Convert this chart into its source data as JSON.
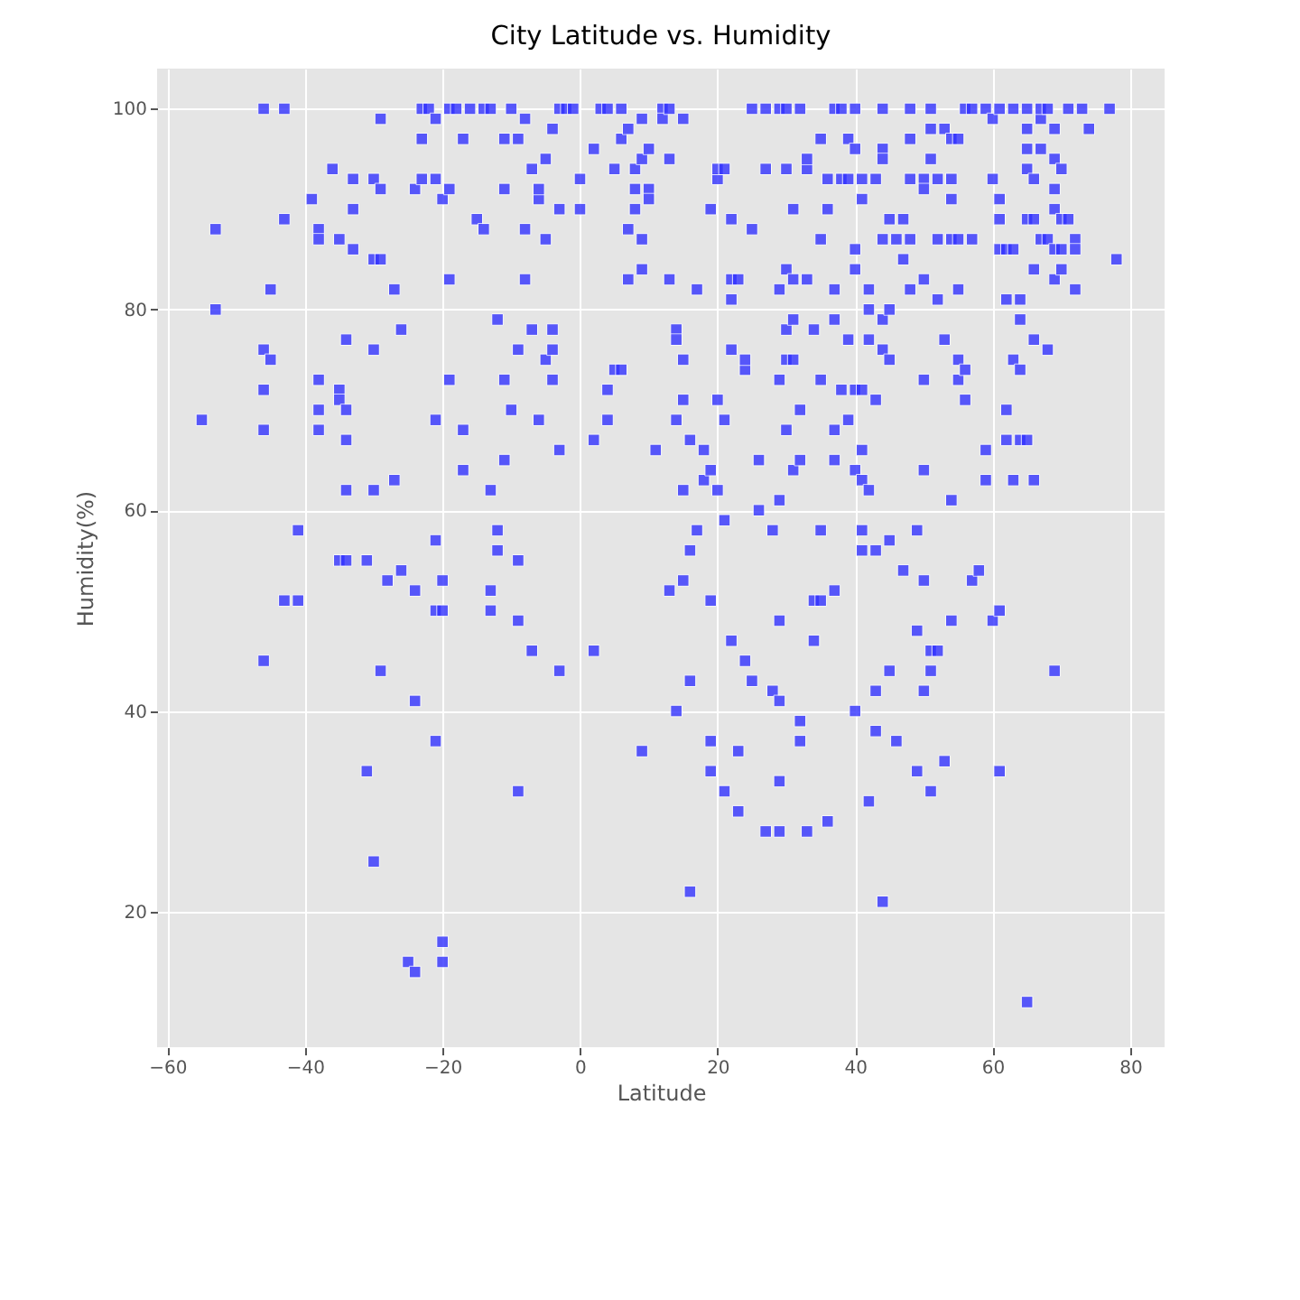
{
  "chart_data": {
    "type": "scatter",
    "title": "City Latitude vs. Humidity",
    "xlabel": "Latitude",
    "ylabel": "Humidity(%)",
    "color": "#3333ff",
    "marker": "square",
    "grid": true,
    "xlim": [
      -61.5,
      85
    ],
    "ylim": [
      6.5,
      104
    ],
    "xticks": [
      -60,
      -40,
      -20,
      0,
      20,
      40,
      60,
      80
    ],
    "yticks": [
      20,
      40,
      60,
      80,
      100
    ],
    "x": [
      -55,
      -53,
      -53,
      -46,
      -46,
      -46,
      -46,
      -46,
      -45,
      -45,
      -43,
      -43,
      -43,
      -41,
      -41,
      -39,
      -38,
      -38,
      -38,
      -38,
      -38,
      -36,
      -35,
      -35,
      -34,
      -35,
      -34,
      -34,
      -35,
      -34,
      -33,
      -33,
      -33,
      -34,
      -31,
      -31,
      -30,
      -30,
      -29,
      -30,
      -30,
      -30,
      -29,
      -29,
      -29,
      -27,
      -27,
      -28,
      -26,
      -26,
      -25,
      -24,
      -24,
      -24,
      -24,
      -23,
      -23,
      -23,
      -22,
      -21,
      -21,
      -21,
      -21,
      -21,
      -21,
      -20,
      -20,
      -20,
      -20,
      -20,
      -19,
      -19,
      -19,
      -19,
      -18,
      -17,
      -17,
      -17,
      -16,
      -15,
      -14,
      -14,
      -13,
      -13,
      -13,
      -13,
      -12,
      -12,
      -12,
      -11,
      -11,
      -11,
      -11,
      -10,
      -10,
      -9,
      -9,
      -9,
      -9,
      -9,
      -8,
      -8,
      -8,
      -7,
      -7,
      -7,
      -6,
      -6,
      -6,
      -5,
      -5,
      -5,
      -4,
      -4,
      -4,
      -4,
      -3,
      -3,
      -3,
      -3,
      -2,
      -1,
      0,
      0,
      2,
      2,
      2,
      3,
      4,
      4,
      4,
      5,
      5,
      6,
      6,
      6,
      7,
      7,
      7,
      8,
      8,
      8,
      9,
      9,
      9,
      9,
      9,
      10,
      10,
      10,
      11,
      12,
      12,
      13,
      13,
      13,
      13,
      14,
      14,
      14,
      14,
      15,
      15,
      15,
      15,
      15,
      16,
      16,
      16,
      16,
      17,
      17,
      18,
      18,
      19,
      19,
      19,
      19,
      19,
      20,
      20,
      20,
      20,
      21,
      21,
      21,
      21,
      22,
      22,
      22,
      22,
      22,
      23,
      23,
      23,
      24,
      24,
      24,
      25,
      25,
      25,
      26,
      26,
      27,
      27,
      27,
      28,
      28,
      29,
      29,
      29,
      29,
      29,
      29,
      29,
      29,
      30,
      30,
      30,
      30,
      30,
      30,
      31,
      31,
      31,
      31,
      31,
      32,
      32,
      32,
      32,
      32,
      33,
      33,
      33,
      33,
      34,
      34,
      34,
      35,
      35,
      35,
      35,
      35,
      36,
      36,
      36,
      37,
      37,
      37,
      37,
      37,
      37,
      38,
      38,
      38,
      39,
      39,
      39,
      39,
      40,
      40,
      40,
      40,
      40,
      40,
      40,
      41,
      41,
      41,
      41,
      41,
      41,
      41,
      42,
      42,
      42,
      42,
      42,
      43,
      43,
      43,
      43,
      43,
      44,
      44,
      44,
      44,
      44,
      44,
      44,
      45,
      45,
      45,
      45,
      45,
      46,
      46,
      47,
      47,
      47,
      48,
      48,
      48,
      48,
      48,
      49,
      49,
      49,
      50,
      50,
      50,
      50,
      50,
      50,
      50,
      51,
      51,
      51,
      51,
      51,
      51,
      52,
      52,
      52,
      52,
      53,
      53,
      53,
      54,
      54,
      54,
      54,
      54,
      54,
      55,
      55,
      55,
      55,
      55,
      56,
      56,
      56,
      57,
      57,
      57,
      58,
      59,
      59,
      59,
      60,
      60,
      60,
      61,
      61,
      61,
      61,
      61,
      61,
      62,
      62,
      62,
      62,
      63,
      63,
      63,
      63,
      64,
      64,
      64,
      64,
      65,
      65,
      65,
      65,
      65,
      65,
      65,
      66,
      66,
      66,
      66,
      66,
      67,
      67,
      67,
      67,
      68,
      68,
      68,
      69,
      69,
      69,
      69,
      69,
      69,
      69,
      70,
      70,
      70,
      70,
      71,
      71,
      72,
      72,
      72,
      73,
      74,
      77,
      78
    ],
    "values": [
      69,
      88,
      80,
      100,
      76,
      72,
      68,
      45,
      82,
      75,
      89,
      100,
      51,
      58,
      51,
      91,
      88,
      87,
      73,
      70,
      68,
      94,
      72,
      71,
      70,
      87,
      77,
      62,
      55,
      55,
      93,
      90,
      86,
      67,
      55,
      34,
      93,
      85,
      85,
      62,
      76,
      25,
      99,
      44,
      92,
      82,
      63,
      53,
      78,
      54,
      15,
      92,
      52,
      41,
      14,
      93,
      100,
      97,
      100,
      93,
      99,
      69,
      57,
      37,
      50,
      91,
      15,
      50,
      53,
      17,
      73,
      100,
      83,
      92,
      100,
      97,
      64,
      68,
      100,
      89,
      100,
      88,
      62,
      50,
      52,
      100,
      79,
      58,
      56,
      92,
      65,
      97,
      73,
      100,
      70,
      76,
      55,
      32,
      97,
      49,
      99,
      88,
      83,
      94,
      78,
      46,
      91,
      69,
      92,
      75,
      95,
      87,
      78,
      76,
      98,
      73,
      90,
      44,
      66,
      100,
      100,
      100,
      93,
      90,
      96,
      46,
      67,
      100,
      72,
      69,
      100,
      94,
      74,
      74,
      97,
      100,
      88,
      83,
      98,
      90,
      94,
      92,
      87,
      95,
      99,
      36,
      84,
      96,
      92,
      91,
      66,
      100,
      99,
      100,
      95,
      83,
      52,
      78,
      40,
      69,
      77,
      75,
      53,
      99,
      62,
      71,
      43,
      22,
      67,
      56,
      82,
      58,
      66,
      63,
      90,
      37,
      64,
      51,
      34,
      93,
      71,
      62,
      94,
      59,
      32,
      94,
      69,
      81,
      83,
      47,
      89,
      76,
      36,
      30,
      83,
      74,
      45,
      75,
      100,
      43,
      88,
      60,
      65,
      100,
      94,
      28,
      58,
      42,
      100,
      28,
      49,
      82,
      73,
      41,
      61,
      33,
      100,
      78,
      75,
      94,
      84,
      68,
      64,
      79,
      83,
      90,
      75,
      39,
      37,
      65,
      70,
      100,
      28,
      94,
      95,
      83,
      78,
      47,
      51,
      97,
      87,
      51,
      73,
      58,
      29,
      90,
      93,
      65,
      100,
      79,
      52,
      68,
      82,
      72,
      93,
      100,
      77,
      69,
      97,
      93,
      64,
      96,
      100,
      86,
      40,
      84,
      72,
      91,
      58,
      93,
      63,
      72,
      66,
      56,
      82,
      80,
      62,
      77,
      31,
      93,
      56,
      71,
      38,
      42,
      21,
      96,
      95,
      87,
      76,
      100,
      79,
      89,
      80,
      75,
      57,
      44,
      37,
      87,
      89,
      54,
      85,
      93,
      82,
      97,
      87,
      100,
      48,
      34,
      58,
      93,
      73,
      83,
      92,
      42,
      64,
      53,
      44,
      100,
      95,
      32,
      46,
      98,
      93,
      87,
      81,
      46,
      98,
      35,
      77,
      97,
      93,
      61,
      49,
      87,
      91,
      75,
      73,
      82,
      87,
      97,
      100,
      74,
      71,
      53,
      100,
      87,
      54,
      66,
      63,
      100,
      49,
      99,
      93,
      91,
      89,
      86,
      34,
      50,
      100,
      81,
      86,
      67,
      70,
      75,
      86,
      100,
      63,
      67,
      74,
      79,
      81,
      67,
      11,
      94,
      96,
      98,
      89,
      100,
      63,
      89,
      77,
      93,
      84,
      99,
      100,
      87,
      96,
      76,
      100,
      87,
      83,
      90,
      98,
      95,
      44,
      92,
      86,
      94,
      89,
      84,
      86,
      100,
      89,
      87,
      86,
      82,
      100,
      98,
      100,
      85
    ]
  }
}
